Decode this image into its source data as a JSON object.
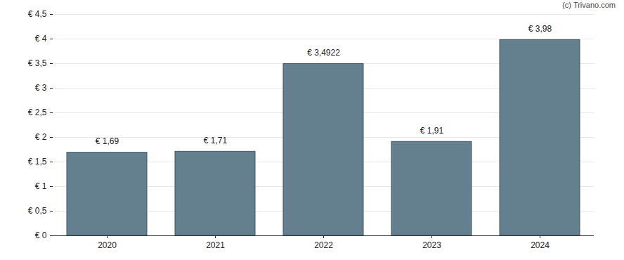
{
  "chart_data": {
    "type": "bar",
    "annotation": "(c) Trivano.com",
    "categories": [
      "2020",
      "2021",
      "2022",
      "2023",
      "2024"
    ],
    "values": [
      1.69,
      1.71,
      3.4922,
      1.91,
      3.98
    ],
    "value_labels": [
      "€ 1,69",
      "€ 1,71",
      "€ 3,4922",
      "€ 1,91",
      "€ 3,98"
    ],
    "data_labels": true,
    "color": "#64808f",
    "ylim": [
      0,
      4.5
    ],
    "yticks": [
      {
        "value": 0,
        "label": "€ 0"
      },
      {
        "value": 0.5,
        "label": "€ 0,5"
      },
      {
        "value": 1,
        "label": "€ 1"
      },
      {
        "value": 1.5,
        "label": "€ 1,5"
      },
      {
        "value": 2,
        "label": "€ 2"
      },
      {
        "value": 2.5,
        "label": "€ 2,5"
      },
      {
        "value": 3,
        "label": "€ 3"
      },
      {
        "value": 3.5,
        "label": "€ 3,5"
      },
      {
        "value": 4,
        "label": "€ 4"
      },
      {
        "value": 4.5,
        "label": "€ 4,5"
      }
    ],
    "grid": true
  }
}
